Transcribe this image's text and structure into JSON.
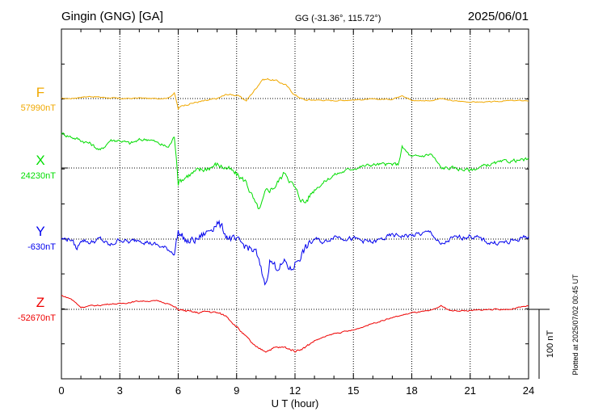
{
  "header": {
    "station": "Gingin (GNG)  [GA]",
    "coords": "GG (-31.36°, 115.72°)",
    "date": "2025/06/01"
  },
  "footer": {
    "plotted": "Plotted at 2025/07/02 00:45 UT"
  },
  "chart_data": {
    "type": "line",
    "xlabel": "U T (hour)",
    "xlim": [
      0,
      24
    ],
    "xticks": [
      "0",
      "3",
      "6",
      "9",
      "12",
      "15",
      "18",
      "21",
      "24"
    ],
    "scale_bar_label": "100 nT",
    "scale_bar_nT": 100,
    "series": [
      {
        "name": "F",
        "baseline_label": "57990nT",
        "baseline_nT": 57990,
        "color": "#f0a800",
        "t": [
          0,
          0.5,
          1,
          1.5,
          2,
          2.5,
          3,
          3.5,
          4,
          4.5,
          5,
          5.5,
          5.8,
          5.9,
          6,
          6.2,
          6.5,
          7,
          7.5,
          8,
          8.5,
          9,
          9.5,
          10,
          10.3,
          10.6,
          11,
          11.5,
          12,
          12.5,
          13,
          14,
          15,
          16,
          17,
          17.5,
          18,
          19,
          19.5,
          20,
          21,
          22,
          23,
          24
        ],
        "v": [
          0,
          0,
          2,
          3,
          2,
          1,
          0,
          0,
          1,
          0,
          0,
          1,
          8,
          -3,
          -15,
          -10,
          -8,
          -5,
          -3,
          0,
          6,
          5,
          -3,
          15,
          27,
          28,
          26,
          20,
          5,
          -2,
          -2,
          -3,
          -2,
          -1,
          -1,
          5,
          -3,
          -3,
          0,
          -3,
          -5,
          -5,
          -3,
          -3
        ]
      },
      {
        "name": "X",
        "baseline_label": "24230nT",
        "baseline_nT": 24230,
        "color": "#00dd00",
        "t": [
          0,
          0.5,
          1,
          1.5,
          2,
          2.5,
          3,
          3.5,
          4,
          4.5,
          5,
          5.5,
          5.8,
          5.9,
          6,
          6.5,
          7,
          7.5,
          8,
          8.5,
          9,
          9.5,
          10,
          10.2,
          10.5,
          11,
          11.5,
          11.8,
          12.2,
          12.5,
          13,
          13.5,
          14,
          15,
          16,
          17,
          17.3,
          17.5,
          18,
          19,
          19.5,
          20,
          21,
          22,
          23,
          24
        ],
        "v": [
          50,
          45,
          40,
          35,
          25,
          40,
          40,
          35,
          40,
          42,
          35,
          30,
          45,
          20,
          -20,
          -10,
          -5,
          0,
          5,
          0,
          -10,
          -20,
          -55,
          -60,
          -35,
          -25,
          -5,
          -20,
          -40,
          -50,
          -30,
          -20,
          -10,
          0,
          5,
          5,
          5,
          30,
          15,
          20,
          0,
          0,
          -3,
          5,
          10,
          12
        ]
      },
      {
        "name": "Y",
        "baseline_label": "-630nT",
        "baseline_nT": -630,
        "color": "#0000ee",
        "t": [
          0,
          0.5,
          0.8,
          1,
          1.5,
          2,
          2.5,
          3,
          3.5,
          4,
          4.5,
          5,
          5.5,
          5.8,
          6,
          6.5,
          7,
          7.5,
          8,
          8.5,
          9,
          9.5,
          10,
          10.3,
          10.5,
          10.7,
          11,
          11.5,
          11.8,
          12,
          12.5,
          13,
          13.5,
          14,
          15,
          16,
          17,
          18,
          19,
          19.5,
          20,
          21,
          22,
          23,
          24
        ],
        "v": [
          0,
          0,
          -15,
          0,
          -5,
          0,
          -10,
          0,
          -5,
          0,
          -5,
          -10,
          -15,
          -20,
          10,
          -5,
          0,
          10,
          25,
          5,
          -5,
          -10,
          -20,
          -50,
          -65,
          -30,
          -40,
          -35,
          -45,
          -35,
          -15,
          0,
          -5,
          5,
          0,
          -5,
          5,
          5,
          10,
          -10,
          0,
          5,
          -5,
          -5,
          5
        ]
      },
      {
        "name": "Z",
        "baseline_label": "-52670nT",
        "baseline_nT": -52670,
        "color": "#ee0000",
        "t": [
          0,
          0.5,
          1,
          1.5,
          2,
          2.5,
          3,
          3.5,
          4,
          4.5,
          5,
          5.5,
          6,
          6.5,
          7,
          7.5,
          8,
          8.5,
          9,
          9.5,
          10,
          10.5,
          11,
          11.5,
          12,
          12.5,
          13,
          13.5,
          14,
          15,
          16,
          17,
          18,
          19,
          19.5,
          20,
          21,
          22,
          23,
          24
        ],
        "v": [
          20,
          15,
          3,
          5,
          6,
          8,
          8,
          10,
          12,
          12,
          12,
          8,
          0,
          -3,
          -5,
          -3,
          -5,
          -10,
          -25,
          -40,
          -55,
          -60,
          -55,
          -55,
          -60,
          -55,
          -45,
          -40,
          -35,
          -30,
          -20,
          -12,
          -5,
          -2,
          5,
          -2,
          -2,
          0,
          0,
          5
        ]
      }
    ]
  }
}
